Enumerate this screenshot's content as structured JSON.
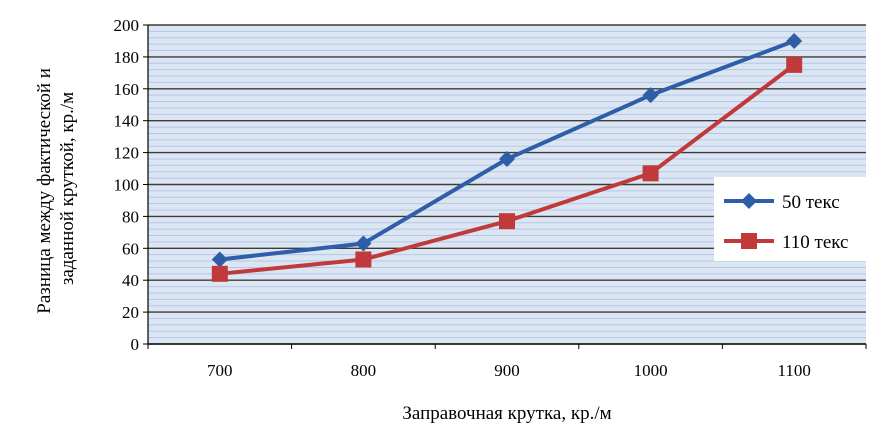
{
  "chart_data": {
    "type": "line",
    "title": "",
    "xlabel": "Заправочная крутка, кр./м",
    "ylabel": [
      "Разница между фактической и",
      "заданной круткой, кр./м"
    ],
    "x": [
      700,
      800,
      900,
      1000,
      1100
    ],
    "x_tick_labels": [
      "700",
      "800",
      "900",
      "1000",
      "1100"
    ],
    "ylim": [
      0,
      200
    ],
    "y_ticks": [
      0,
      20,
      40,
      60,
      80,
      100,
      120,
      140,
      160,
      180,
      200
    ],
    "y_tick_labels": [
      "0",
      "20",
      "40",
      "60",
      "80",
      "100",
      "120",
      "140",
      "160",
      "180",
      "200"
    ],
    "grid": true,
    "legend_position": "right",
    "series": [
      {
        "name": "50 текс",
        "values": [
          53,
          63,
          116,
          156,
          190
        ],
        "color": "#2e5ea8",
        "marker": "diamond"
      },
      {
        "name": "110 текс",
        "values": [
          44,
          53,
          77,
          107,
          175
        ],
        "color": "#c0393b",
        "marker": "square"
      }
    ],
    "colors": {
      "plot_background": "#dce6f2",
      "minor_grid": "#b4c7e7",
      "major_grid": "#3c3c3c"
    }
  }
}
